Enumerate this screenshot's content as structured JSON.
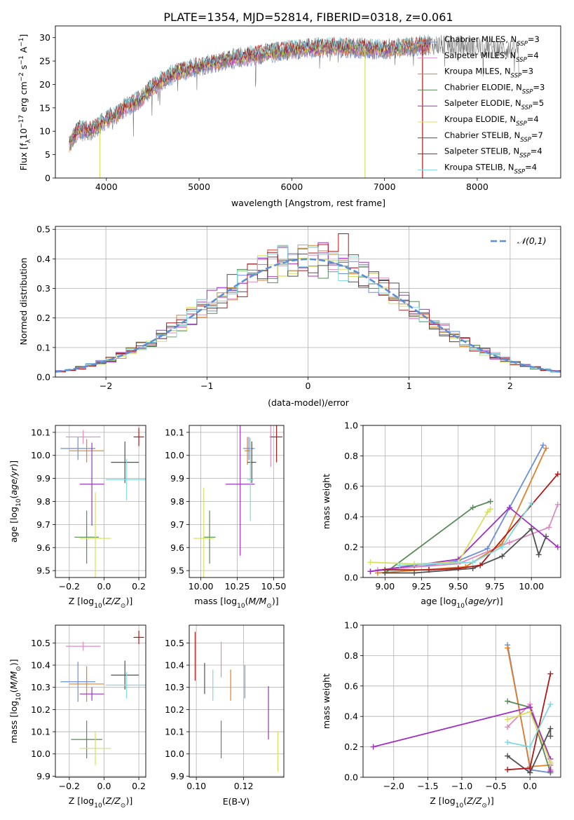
{
  "title": "PLATE=1354, MJD=52814, FIBERID=0318, z=0.061",
  "colors": {
    "Chabrier MILES": "#6a8fd8",
    "Salpeter MILES": "#e08ac2",
    "Kroupa MILES": "#e0802a",
    "Chabrier ELODIE": "#5a8a5a",
    "Salpeter ELODIE": "#a030c0",
    "Kroupa ELODIE": "#d8e060",
    "Chabrier STELIB": "#505050",
    "Salpeter STELIB": "#b01818",
    "Kroupa STELIB": "#80d8e0"
  },
  "legend_entries": [
    {
      "name": "Chabrier MILES",
      "n": "3"
    },
    {
      "name": "Salpeter MILES",
      "n": "4"
    },
    {
      "name": "Kroupa MILES",
      "n": "3"
    },
    {
      "name": "Chabrier ELODIE",
      "n": "3"
    },
    {
      "name": "Salpeter ELODIE",
      "n": "5"
    },
    {
      "name": "Kroupa ELODIE",
      "n": "4"
    },
    {
      "name": "Chabrier STELIB",
      "n": "7"
    },
    {
      "name": "Salpeter STELIB",
      "n": "4"
    },
    {
      "name": "Kroupa STELIB",
      "n": "4"
    }
  ],
  "chart_data": [
    {
      "id": "spectrum",
      "type": "line",
      "xlabel": "wavelength [Angstrom, rest frame]",
      "ylabel": "Flux [f_λ 10^-17 erg cm^-2 s^-1 A^-1]",
      "xlim": [
        3450,
        8900
      ],
      "ylim": [
        0,
        32.5
      ],
      "xticks": [
        "4000",
        "5000",
        "6000",
        "7000",
        "8000"
      ],
      "yticks": [
        "0",
        "5",
        "10",
        "15",
        "20",
        "25",
        "30"
      ],
      "grid": false,
      "legend": "right",
      "continuum": {
        "x": [
          3600,
          3700,
          3800,
          3900,
          4000,
          4100,
          4200,
          4300,
          4400,
          4500,
          4700,
          5000,
          5500,
          6000,
          6500,
          7000,
          7500,
          8000,
          8400
        ],
        "y": [
          7,
          10.5,
          10,
          11,
          12.5,
          13.5,
          15,
          16,
          17.5,
          19.5,
          22,
          24,
          26,
          27.5,
          28,
          27.5,
          28.5,
          28,
          27.5
        ]
      },
      "data_range": [
        3600,
        8450
      ],
      "model_range": [
        3600,
        7500
      ],
      "spikes": [
        {
          "x": 3930,
          "y": 0,
          "series": "Kroupa ELODIE"
        },
        {
          "x": 6790,
          "y": 0,
          "series": "Kroupa ELODIE"
        },
        {
          "x": 7410,
          "y": 0,
          "series": "Salpeter STELIB"
        }
      ]
    },
    {
      "id": "residuals",
      "type": "bar",
      "xlabel": "(data-model)/error",
      "ylabel": "Normed distribution",
      "xlim": [
        -2.5,
        2.5
      ],
      "ylim": [
        0,
        0.51
      ],
      "xticks": [
        "−2",
        "−1",
        "0",
        "1",
        "2"
      ],
      "yticks": [
        "0.0",
        "0.1",
        "0.2",
        "0.3",
        "0.4",
        "0.5"
      ],
      "grid": true,
      "legend": "top-right",
      "reference": {
        "name": "𝒩(0,1)",
        "mean": 0,
        "sigma": 1
      },
      "bin_width": 0.1,
      "highlight": {
        "x": 0.35,
        "y": 0.485,
        "series": "Salpeter STELIB"
      }
    },
    {
      "id": "age_vs_Z",
      "type": "scatter",
      "xlabel": "Z [log10(Z/Z⊙)]",
      "ylabel": "age [log10(age/yr)]",
      "xlim": [
        -0.28,
        0.24
      ],
      "ylim": [
        9.47,
        10.13
      ],
      "xticks": [
        "−0.2",
        "0.0",
        "0.2"
      ],
      "yticks": [
        "9.5",
        "9.6",
        "9.7",
        "9.8",
        "9.9",
        "10.0",
        "10.1"
      ],
      "grid": true,
      "points": [
        {
          "series": "Chabrier MILES",
          "x": -0.15,
          "y": 10.03,
          "xerr": 0.1,
          "yerr": 0.05
        },
        {
          "series": "Salpeter MILES",
          "x": -0.12,
          "y": 10.08,
          "xerr": 0.1,
          "yerr": 0.03
        },
        {
          "series": "Kroupa MILES",
          "x": -0.1,
          "y": 10.02,
          "xerr": 0.1,
          "yerr": 0.05
        },
        {
          "series": "Chabrier ELODIE",
          "x": -0.1,
          "y": 9.645,
          "xerr": 0.07,
          "yerr": 0.115
        },
        {
          "series": "Salpeter ELODIE",
          "x": -0.07,
          "y": 9.875,
          "xerr": 0.07,
          "yerr": 0.18
        },
        {
          "series": "Kroupa ELODIE",
          "x": -0.05,
          "y": 9.64,
          "xerr": 0.09,
          "yerr": 0.2
        },
        {
          "series": "Chabrier STELIB",
          "x": 0.12,
          "y": 9.97,
          "xerr": 0.08,
          "yerr": 0.09
        },
        {
          "series": "Salpeter STELIB",
          "x": 0.2,
          "y": 10.08,
          "xerr": 0.03,
          "yerr": 0.04
        },
        {
          "series": "Kroupa STELIB",
          "x": 0.13,
          "y": 9.895,
          "xerr": 0.12,
          "yerr": 0.09
        }
      ]
    },
    {
      "id": "age_vs_mass",
      "type": "scatter",
      "xlabel": "mass [log10(M/M⊙)]",
      "ylabel": "",
      "xlim": [
        9.92,
        10.57
      ],
      "ylim": [
        9.47,
        10.13
      ],
      "xticks": [
        "10.00",
        "10.25",
        "10.50"
      ],
      "yticks": [
        "9.5",
        "9.6",
        "9.7",
        "9.8",
        "9.9",
        "10.0",
        "10.1"
      ],
      "grid": true,
      "points": [
        {
          "series": "Chabrier MILES",
          "x": 10.33,
          "y": 10.03,
          "xerr": 0.04,
          "yerr": 0.05
        },
        {
          "series": "Salpeter MILES",
          "x": 10.48,
          "y": 10.08,
          "xerr": 0.01,
          "yerr": 0.13
        },
        {
          "series": "Kroupa MILES",
          "x": 10.32,
          "y": 10.02,
          "xerr": 0.02,
          "yerr": 0.06
        },
        {
          "series": "Chabrier ELODIE",
          "x": 10.06,
          "y": 9.645,
          "xerr": 0.04,
          "yerr": 0.115
        },
        {
          "series": "Salpeter ELODIE",
          "x": 10.27,
          "y": 9.875,
          "xerr": 0.1,
          "yerr": 0.31
        },
        {
          "series": "Kroupa ELODIE",
          "x": 10.02,
          "y": 9.64,
          "xerr": 0.07,
          "yerr": 0.22
        },
        {
          "series": "Chabrier STELIB",
          "x": 10.35,
          "y": 9.97,
          "xerr": 0.03,
          "yerr": 0.09
        },
        {
          "series": "Salpeter STELIB",
          "x": 10.52,
          "y": 10.08,
          "xerr": 0.04,
          "yerr": 0.11
        },
        {
          "series": "Kroupa STELIB",
          "x": 10.34,
          "y": 9.895,
          "xerr": 0.02,
          "yerr": 0.18
        }
      ]
    },
    {
      "id": "mass_weight_vs_age",
      "type": "line",
      "xlabel": "age [log10(age/yr)]",
      "ylabel": "mass weight",
      "xlim": [
        8.85,
        10.2
      ],
      "ylim": [
        0,
        1.0
      ],
      "xticks": [
        "9.00",
        "9.25",
        "9.50",
        "9.75",
        "10.00"
      ],
      "yticks": [
        "0.0",
        "0.2",
        "0.4",
        "0.6",
        "0.8",
        "1.0"
      ],
      "grid": true,
      "series": [
        {
          "name": "Chabrier MILES",
          "x": [
            8.9,
            9.3,
            9.5,
            9.7,
            10.08
          ],
          "y": [
            0.04,
            0.08,
            0.11,
            0.19,
            0.87
          ]
        },
        {
          "name": "Salpeter MILES",
          "x": [
            8.95,
            9.5,
            9.85,
            10.12,
            10.18
          ],
          "y": [
            0.05,
            0.09,
            0.23,
            0.33,
            0.48
          ]
        },
        {
          "name": "Kroupa MILES",
          "x": [
            8.95,
            9.55,
            9.8,
            10.1
          ],
          "y": [
            0.03,
            0.07,
            0.22,
            0.85
          ]
        },
        {
          "name": "Chabrier ELODIE",
          "x": [
            9.0,
            9.6,
            9.72
          ],
          "y": [
            0.03,
            0.46,
            0.5
          ]
        },
        {
          "name": "Salpeter ELODIE",
          "x": [
            8.9,
            9.2,
            9.5,
            9.85,
            10.18
          ],
          "y": [
            0.04,
            0.08,
            0.12,
            0.46,
            0.2
          ]
        },
        {
          "name": "Kroupa ELODIE",
          "x": [
            8.9,
            9.2,
            9.5,
            9.7,
            9.72
          ],
          "y": [
            0.1,
            0.09,
            0.1,
            0.43,
            0.45
          ]
        },
        {
          "name": "Chabrier STELIB",
          "x": [
            9.0,
            9.2,
            9.6,
            9.8,
            10.0,
            10.05,
            10.1
          ],
          "y": [
            0.03,
            0.03,
            0.06,
            0.14,
            0.32,
            0.15,
            0.27
          ]
        },
        {
          "name": "Salpeter STELIB",
          "x": [
            9.0,
            9.3,
            9.5,
            9.65,
            10.18
          ],
          "y": [
            0.05,
            0.05,
            0.06,
            0.08,
            0.68
          ]
        },
        {
          "name": "Kroupa STELIB",
          "x": [
            9.1,
            9.6,
            9.8,
            10.0
          ],
          "y": [
            0.08,
            0.1,
            0.2,
            0.49
          ]
        }
      ]
    },
    {
      "id": "mass_vs_Z",
      "type": "scatter",
      "xlabel": "Z [log10(Z/Z⊙)]",
      "ylabel": "mass [log10(M/M⊙)]",
      "xlim": [
        -0.28,
        0.24
      ],
      "ylim": [
        9.895,
        10.58
      ],
      "xticks": [
        "−0.2",
        "0.0",
        "0.2"
      ],
      "yticks": [
        "9.9",
        "10.0",
        "10.1",
        "10.2",
        "10.3",
        "10.4",
        "10.5"
      ],
      "grid": true,
      "points": [
        {
          "series": "Chabrier MILES",
          "x": -0.15,
          "y": 10.325,
          "xerr": 0.1,
          "yerr": 0.09
        },
        {
          "series": "Salpeter MILES",
          "x": -0.12,
          "y": 10.485,
          "xerr": 0.1,
          "yerr": 0.02
        },
        {
          "series": "Kroupa MILES",
          "x": -0.1,
          "y": 10.315,
          "xerr": 0.1,
          "yerr": 0.08
        },
        {
          "series": "Chabrier ELODIE",
          "x": -0.1,
          "y": 10.065,
          "xerr": 0.09,
          "yerr": 0.085
        },
        {
          "series": "Salpeter ELODIE",
          "x": -0.07,
          "y": 10.27,
          "xerr": 0.07,
          "yerr": 0.03
        },
        {
          "series": "Kroupa ELODIE",
          "x": -0.05,
          "y": 10.025,
          "xerr": 0.09,
          "yerr": 0.075
        },
        {
          "series": "Chabrier STELIB",
          "x": 0.12,
          "y": 10.355,
          "xerr": 0.08,
          "yerr": 0.065
        },
        {
          "series": "Salpeter STELIB",
          "x": 0.2,
          "y": 10.525,
          "xerr": 0.03,
          "yerr": 0.03
        },
        {
          "series": "Kroupa STELIB",
          "x": 0.13,
          "y": 10.31,
          "xerr": 0.12,
          "yerr": 0.06
        }
      ]
    },
    {
      "id": "mass_vs_ebv",
      "type": "scatter",
      "xlabel": "E(B-V)",
      "ylabel": "",
      "xlim": [
        0.097,
        0.137
      ],
      "ylim": [
        9.895,
        10.58
      ],
      "xticks": [
        "0.10",
        "0.12"
      ],
      "yticks": [
        "9.9",
        "10.0",
        "10.1",
        "10.2",
        "10.3",
        "10.4",
        "10.5"
      ],
      "grid": true,
      "points": [
        {
          "series": "Chabrier MILES",
          "x": 0.1205,
          "y": 10.325,
          "yerr": 0.075
        },
        {
          "series": "Salpeter MILES",
          "x": 0.1105,
          "y": 10.425,
          "yerr": 0.08
        },
        {
          "series": "Kroupa MILES",
          "x": 0.1145,
          "y": 10.31,
          "yerr": 0.07
        },
        {
          "series": "Chabrier ELODIE",
          "x": 0.1105,
          "y": 10.065,
          "yerr": 0.085
        },
        {
          "series": "Salpeter ELODIE",
          "x": 0.1305,
          "y": 10.185,
          "yerr": 0.12
        },
        {
          "series": "Kroupa ELODIE",
          "x": 0.1345,
          "y": 10.01,
          "yerr": 0.09
        },
        {
          "series": "Chabrier STELIB",
          "x": 0.1035,
          "y": 10.34,
          "yerr": 0.07
        },
        {
          "series": "Salpeter STELIB",
          "x": 0.0995,
          "y": 10.44,
          "yerr": 0.11
        },
        {
          "series": "Kroupa STELIB",
          "x": 0.107,
          "y": 10.31,
          "yerr": 0.07
        }
      ]
    },
    {
      "id": "mass_weight_vs_Z",
      "type": "line",
      "xlabel": "Z [log10(Z/Z⊙)]",
      "ylabel": "mass weight",
      "xlim": [
        -2.45,
        0.45
      ],
      "ylim": [
        0,
        1.0
      ],
      "xticks": [
        "−2.0",
        "−1.5",
        "−1.0",
        "−0.5",
        "0.0"
      ],
      "yticks": [
        "0.0",
        "0.2",
        "0.4",
        "0.6",
        "0.8",
        "1.0"
      ],
      "grid": true,
      "series": [
        {
          "name": "Chabrier MILES",
          "x": [
            -0.33,
            0.0,
            0.0,
            0.3
          ],
          "y": [
            0.87,
            0.06,
            0.05,
            0.03
          ]
        },
        {
          "name": "Salpeter MILES",
          "x": [
            -0.33,
            0.0,
            0.3,
            0.3
          ],
          "y": [
            0.33,
            0.48,
            0.09,
            0.05
          ]
        },
        {
          "name": "Kroupa MILES",
          "x": [
            -0.33,
            0.0,
            0.3
          ],
          "y": [
            0.85,
            0.07,
            0.08
          ]
        },
        {
          "name": "Chabrier ELODIE",
          "x": [
            -0.33,
            0.0,
            0.3
          ],
          "y": [
            0.5,
            0.46,
            0.03
          ]
        },
        {
          "name": "Salpeter ELODIE",
          "x": [
            -2.3,
            0.0,
            0.3,
            0.3
          ],
          "y": [
            0.2,
            0.46,
            0.12,
            0.04
          ]
        },
        {
          "name": "Kroupa ELODIE",
          "x": [
            -0.33,
            0.0,
            0.3,
            0.3
          ],
          "y": [
            0.38,
            0.43,
            0.1,
            0.09
          ]
        },
        {
          "name": "Chabrier STELIB",
          "x": [
            -0.33,
            0.0,
            0.3,
            0.3
          ],
          "y": [
            0.14,
            0.03,
            0.32,
            0.27
          ]
        },
        {
          "name": "Salpeter STELIB",
          "x": [
            -0.33,
            0.0,
            0.3
          ],
          "y": [
            0.05,
            0.06,
            0.68
          ]
        },
        {
          "name": "Kroupa STELIB",
          "x": [
            -0.33,
            0.0,
            0.3
          ],
          "y": [
            0.23,
            0.2,
            0.48
          ]
        }
      ]
    }
  ]
}
